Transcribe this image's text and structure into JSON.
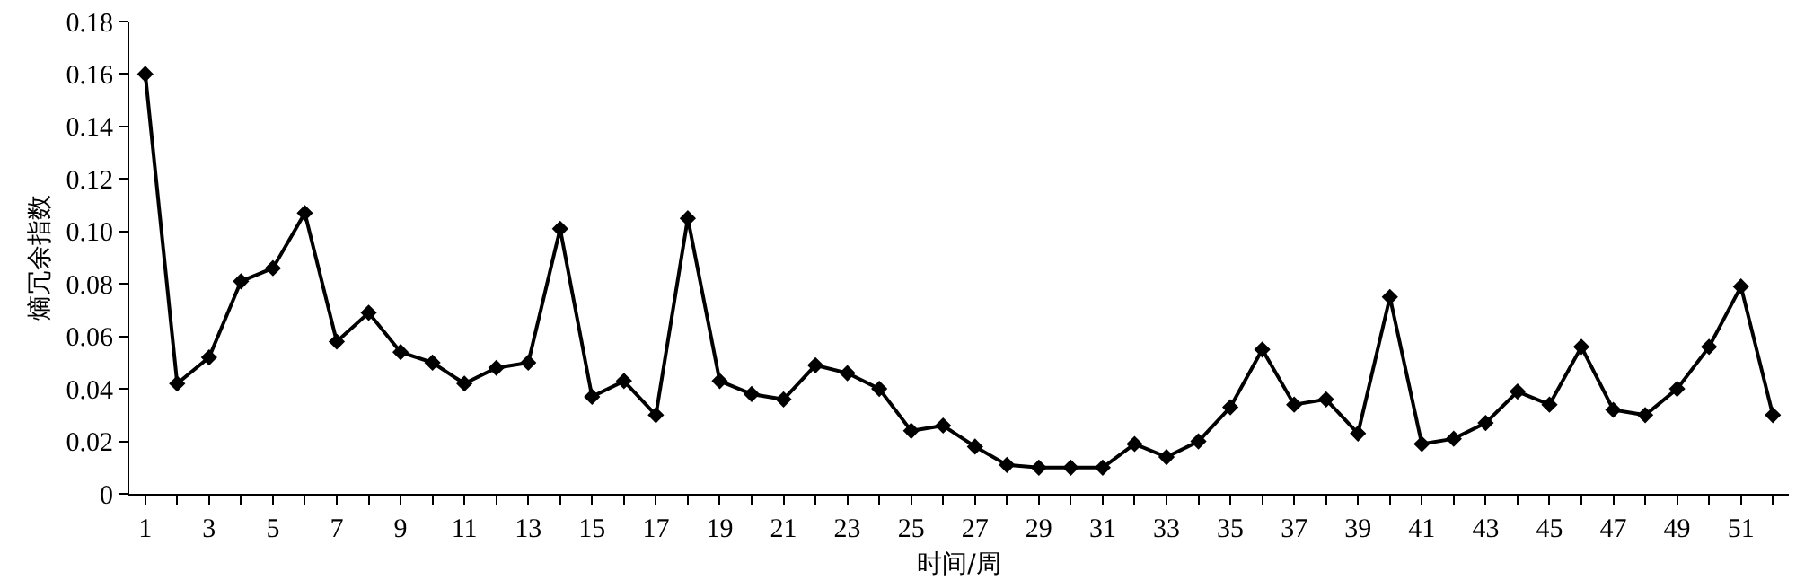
{
  "chart_data": {
    "type": "line",
    "xlabel": "时间/周",
    "ylabel": "熵冗余指数",
    "x": [
      1,
      2,
      3,
      4,
      5,
      6,
      7,
      8,
      9,
      10,
      11,
      12,
      13,
      14,
      15,
      16,
      17,
      18,
      19,
      20,
      21,
      22,
      23,
      24,
      25,
      26,
      27,
      28,
      29,
      30,
      31,
      32,
      33,
      34,
      35,
      36,
      37,
      38,
      39,
      40,
      41,
      42,
      43,
      44,
      45,
      46,
      47,
      48,
      49,
      50,
      51,
      52
    ],
    "series": [
      {
        "color": "#000000",
        "values": [
          0.16,
          0.042,
          0.052,
          0.081,
          0.086,
          0.107,
          0.058,
          0.069,
          0.054,
          0.05,
          0.042,
          0.048,
          0.05,
          0.101,
          0.037,
          0.043,
          0.03,
          0.105,
          0.043,
          0.038,
          0.036,
          0.049,
          0.046,
          0.04,
          0.024,
          0.026,
          0.018,
          0.011,
          0.01,
          0.01,
          0.01,
          0.019,
          0.014,
          0.02,
          0.033,
          0.055,
          0.034,
          0.036,
          0.023,
          0.075,
          0.019,
          0.021,
          0.027,
          0.039,
          0.034,
          0.056,
          0.032,
          0.03,
          0.04,
          0.056,
          0.079,
          0.03
        ]
      }
    ],
    "xlim": [
      0.5,
      52.5
    ],
    "xticks": [
      1,
      {
        "value": 2,
        "label": null
      },
      3,
      {
        "value": 4,
        "label": null
      },
      5,
      {
        "value": 6,
        "label": null
      },
      7,
      {
        "value": 8,
        "label": null
      },
      9,
      {
        "value": 10,
        "label": null
      },
      11,
      {
        "value": 12,
        "label": null
      },
      13,
      {
        "value": 14,
        "label": null
      },
      15,
      {
        "value": 16,
        "label": null
      },
      17,
      {
        "value": 18,
        "label": null
      },
      19,
      {
        "value": 20,
        "label": null
      },
      21,
      {
        "value": 22,
        "label": null
      },
      23,
      {
        "value": 24,
        "label": null
      },
      25,
      {
        "value": 26,
        "label": null
      },
      27,
      {
        "value": 28,
        "label": null
      },
      29,
      {
        "value": 30,
        "label": null
      },
      31,
      {
        "value": 32,
        "label": null
      },
      33,
      {
        "value": 34,
        "label": null
      },
      35,
      {
        "value": 36,
        "label": null
      },
      37,
      {
        "value": 38,
        "label": null
      },
      39,
      {
        "value": 40,
        "label": null
      },
      41,
      {
        "value": 42,
        "label": null
      },
      43,
      {
        "value": 44,
        "label": null
      },
      45,
      {
        "value": 46,
        "label": null
      },
      47,
      {
        "value": 48,
        "label": null
      },
      49,
      {
        "value": 50,
        "label": null
      },
      51,
      {
        "value": 52,
        "label": null
      }
    ],
    "ylim": [
      0,
      0.18
    ],
    "yticks": [
      0,
      {
        "value": 0.02,
        "label": "0.02"
      },
      {
        "value": 0.04,
        "label": "0.04"
      },
      {
        "value": 0.06,
        "label": "0.06"
      },
      {
        "value": 0.08,
        "label": "0.08"
      },
      {
        "value": 0.1,
        "label": "0.10"
      },
      {
        "value": 0.12,
        "label": "0.12"
      },
      {
        "value": 0.14,
        "label": "0.14"
      },
      {
        "value": 0.16,
        "label": "0.16"
      },
      {
        "value": 0.18,
        "label": "0.18"
      }
    ],
    "marker": "diamond",
    "line_style": "solid"
  }
}
